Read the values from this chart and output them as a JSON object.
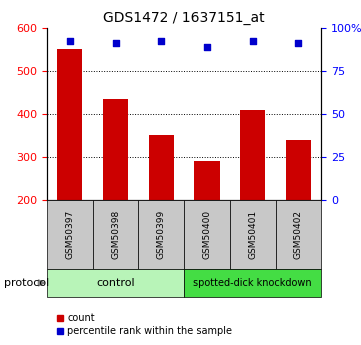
{
  "title": "GDS1472 / 1637151_at",
  "categories": [
    "GSM50397",
    "GSM50398",
    "GSM50399",
    "GSM50400",
    "GSM50401",
    "GSM50402"
  ],
  "bar_values": [
    550,
    435,
    350,
    290,
    408,
    340
  ],
  "percentile_values": [
    92,
    91,
    92,
    89,
    92,
    91
  ],
  "bar_color": "#cc0000",
  "dot_color": "#0000cc",
  "ylim_left": [
    200,
    600
  ],
  "ylim_right": [
    0,
    100
  ],
  "yticks_left": [
    200,
    300,
    400,
    500,
    600
  ],
  "yticks_right": [
    0,
    25,
    50,
    75,
    100
  ],
  "yticklabels_right": [
    "0",
    "25",
    "50",
    "75",
    "100%"
  ],
  "grid_values": [
    300,
    400,
    500
  ],
  "groups": [
    {
      "label": "control",
      "start": 0,
      "end": 3
    },
    {
      "label": "spotted-dick knockdown",
      "start": 3,
      "end": 6
    }
  ],
  "protocol_label": "protocol",
  "legend_count_label": "count",
  "legend_pct_label": "percentile rank within the sample",
  "bar_bottom": 200,
  "group_control_color": "#b8f4b8",
  "group_knockdown_color": "#44dd44",
  "tick_label_gray": "#cccccc",
  "sample_box_color": "#c8c8c8"
}
